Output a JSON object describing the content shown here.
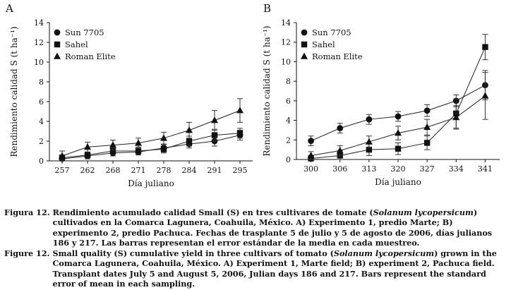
{
  "chart_data": [
    {
      "type": "line",
      "panel": "A",
      "categories": [
        "257",
        "262",
        "268",
        "271",
        "278",
        "284",
        "291",
        "295"
      ],
      "xlabel": "Día juliano",
      "ylabel": "Rendimiento calidad S (t ha⁻¹)",
      "ylim": [
        0,
        14
      ],
      "yticks": [
        "0",
        "2",
        "4",
        "6",
        "8",
        "10",
        "12",
        "14"
      ],
      "legend_position": "top-left",
      "series": [
        {
          "name": "Sun 7705",
          "marker": "circle",
          "values": [
            0.2,
            0.5,
            0.8,
            0.9,
            1.3,
            1.7,
            2.0,
            2.6
          ],
          "errors": [
            0.2,
            0.3,
            0.3,
            0.3,
            0.4,
            0.4,
            0.5,
            0.5
          ]
        },
        {
          "name": "Sahel",
          "marker": "square",
          "values": [
            0.3,
            0.6,
            1.0,
            1.0,
            1.2,
            2.0,
            2.6,
            2.8
          ],
          "errors": [
            0.3,
            0.3,
            0.3,
            0.4,
            0.4,
            0.5,
            0.6,
            0.5
          ]
        },
        {
          "name": "Roman Elite",
          "marker": "triangle",
          "values": [
            0.5,
            1.4,
            1.6,
            1.8,
            2.3,
            3.1,
            4.1,
            5.1
          ],
          "errors": [
            0.5,
            0.5,
            0.5,
            0.5,
            0.6,
            0.8,
            1.0,
            1.2
          ]
        }
      ]
    },
    {
      "type": "line",
      "panel": "B",
      "categories": [
        "300",
        "306",
        "313",
        "320",
        "327",
        "334",
        "341"
      ],
      "xlabel": "Día juliano",
      "ylabel": "Rendimiento calidad S (t ha⁻¹)",
      "ylim": [
        0,
        14
      ],
      "yticks": [
        "0",
        "2",
        "4",
        "6",
        "8",
        "10",
        "12",
        "14"
      ],
      "legend_position": "top-left",
      "series": [
        {
          "name": "Sun 7705",
          "marker": "circle",
          "values": [
            1.9,
            3.2,
            4.1,
            4.4,
            5.0,
            6.0,
            7.6
          ],
          "errors": [
            0.5,
            0.5,
            0.5,
            0.5,
            0.6,
            0.6,
            1.5
          ]
        },
        {
          "name": "Sahel",
          "marker": "square",
          "values": [
            0.1,
            0.4,
            1.0,
            1.1,
            1.7,
            4.7,
            11.5
          ],
          "errors": [
            0.3,
            0.5,
            0.6,
            0.6,
            0.7,
            1.5,
            1.3
          ]
        },
        {
          "name": "Roman Elite",
          "marker": "triangle",
          "values": [
            0.4,
            0.9,
            1.8,
            2.7,
            3.3,
            4.3,
            6.5
          ],
          "errors": [
            0.4,
            0.5,
            0.6,
            0.7,
            0.8,
            1.2,
            2.4
          ]
        }
      ]
    }
  ],
  "caption": {
    "es": {
      "label": "Figura 12.",
      "before": "Rendimiento acumulado calidad Small (S) en tres cultivares de tomate (",
      "species": "Solanum lycopersicum",
      "after": ") cultivados en la Comarca Lagunera, Coahuila, México. A) Experimento 1, predio Marte; B) experimento 2, predio Pachuca. Fechas de trasplante 5 de julio y 5 de agosto de 2006, días julianos 186 y 217. Las barras representan el error estándar de la media en cada muestreo."
    },
    "en": {
      "label": "Figure 12.",
      "before": "Small quality (S) cumulative yield in three cultivars of tomato (",
      "species": "Solanum lycopersicum",
      "after": ") grown in the Comarca Lagunera, Coahuila, México. A) Experiment 1, Marte field; B) experiment 2, Pachuca field. Transplant dates July 5 and August 5, 2006, Julian days 186 and 217. Bars represent the standard error of mean in each sampling."
    }
  }
}
